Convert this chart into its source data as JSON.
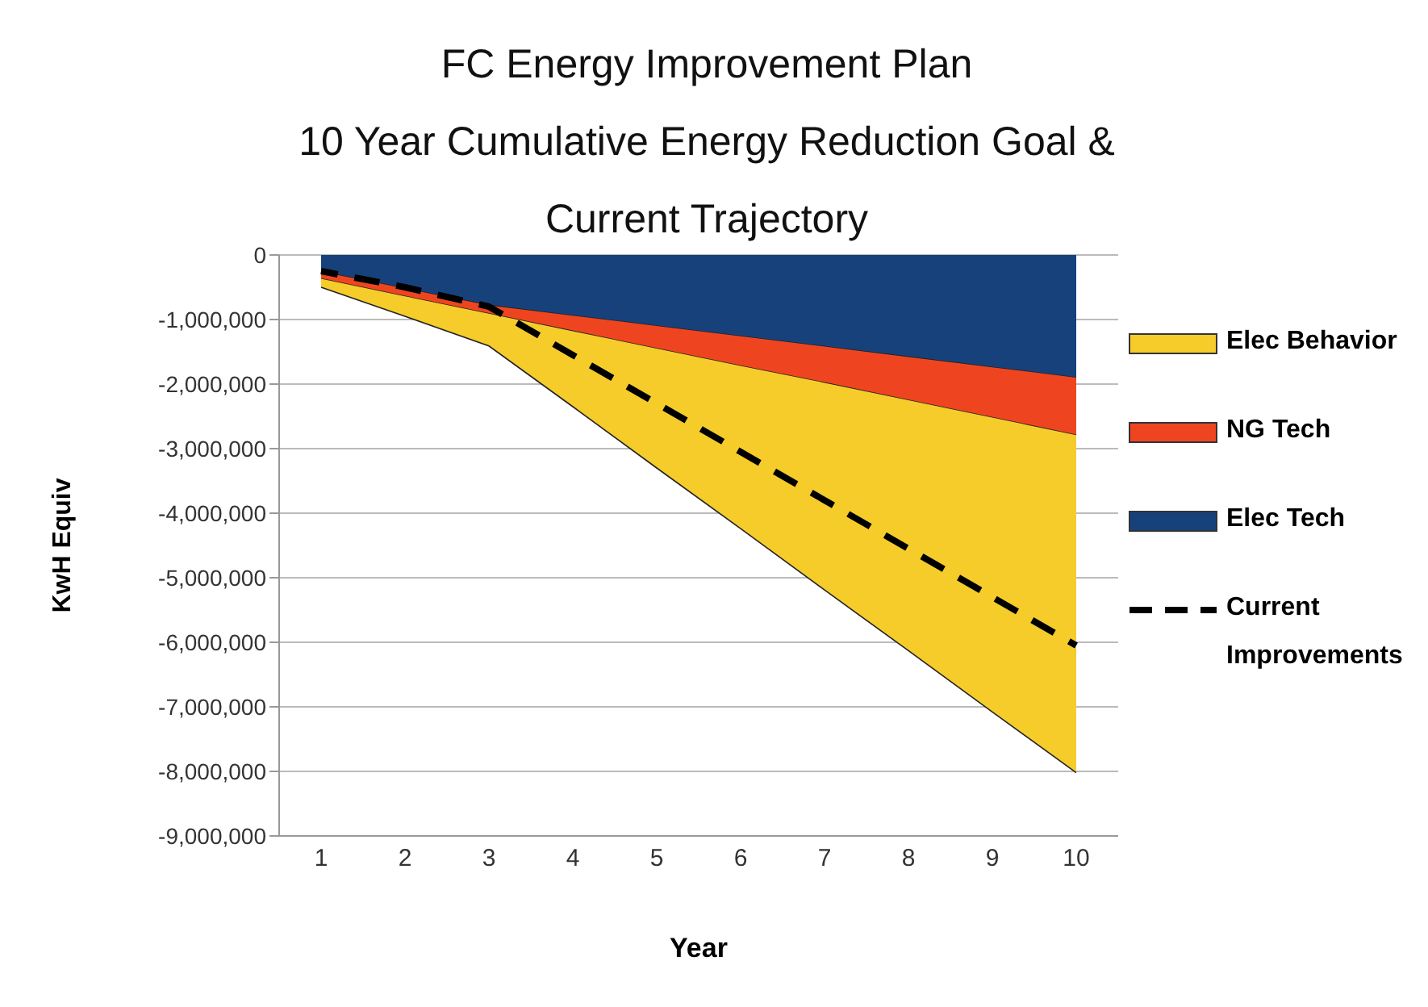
{
  "chart_data": {
    "type": "area",
    "title": "FC Energy Improvement Plan",
    "subtitle": "10 Year Cumulative Energy Reduction Goal & Current Trajectory",
    "xlabel": "Year",
    "ylabel": "KwH Equiv",
    "categories": [
      "1",
      "2",
      "3",
      "4",
      "5",
      "6",
      "7",
      "8",
      "9",
      "10"
    ],
    "stacked": true,
    "series": [
      {
        "name": "Elec Tech",
        "color": "#17417a",
        "values": [
          -260000,
          -520000,
          -780000,
          -940000,
          -1100000,
          -1260000,
          -1420000,
          -1580000,
          -1740000,
          -1900000
        ]
      },
      {
        "name": "NG Tech",
        "color": "#ee4520",
        "values": [
          -110000,
          -120000,
          -130000,
          -240000,
          -350000,
          -460000,
          -560000,
          -670000,
          -780000,
          -890000
        ]
      },
      {
        "name": "Elec Behavior",
        "color": "#f5cc2a",
        "values": [
          -130000,
          -310000,
          -500000,
          -1170000,
          -1850000,
          -2520000,
          -3210000,
          -3880000,
          -4560000,
          -5230000
        ]
      },
      {
        "name": "Current Improvements",
        "type": "line",
        "color": "#000000",
        "line_style": "dashed",
        "values": [
          -250000,
          -500000,
          -800000,
          -1550000,
          -2300000,
          -3050000,
          -3800000,
          -4550000,
          -5300000,
          -6050000
        ]
      }
    ],
    "ylim": [
      -9000000,
      0
    ],
    "yticks": [
      0,
      {
        "value": -1000000,
        "label": "-1,000,000"
      },
      {
        "value": -2000000,
        "label": "-2,000,000"
      },
      {
        "value": -3000000,
        "label": "-3,000,000"
      },
      {
        "value": -4000000,
        "label": "-4,000,000"
      },
      {
        "value": -5000000,
        "label": "-5,000,000"
      },
      {
        "value": -6000000,
        "label": "-6,000,000"
      },
      {
        "value": -7000000,
        "label": "-7,000,000"
      },
      {
        "value": -8000000,
        "label": "-8,000,000"
      },
      {
        "value": -9000000,
        "label": "-9,000,000"
      }
    ],
    "grid": "y",
    "legend": "right",
    "marker": "none"
  }
}
